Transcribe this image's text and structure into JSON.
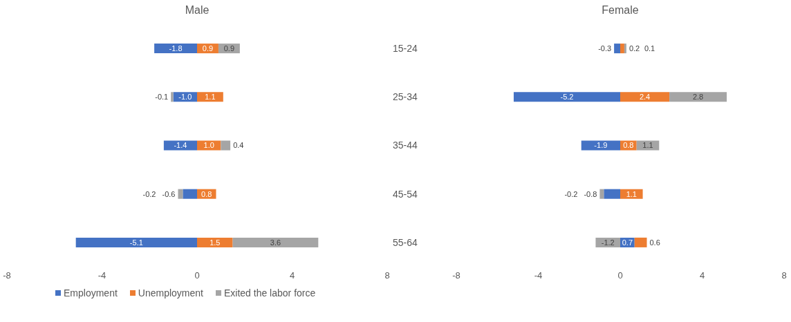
{
  "chart_data": [
    {
      "type": "bar",
      "title": "Male",
      "orientation": "horizontal",
      "stacked": true,
      "categories": [
        "15-24",
        "25-34",
        "35-44",
        "45-54",
        "55-64"
      ],
      "series": [
        {
          "name": "Employment",
          "color": "#4472c4",
          "values": [
            -1.8,
            -1.0,
            -1.4,
            -0.6,
            -5.1
          ],
          "value_labels": [
            "-1.8",
            "-1.0",
            "-1.4",
            "-0.6",
            "-5.1"
          ]
        },
        {
          "name": "Unemployment",
          "color": "#ed7d31",
          "values": [
            0.9,
            1.1,
            1.0,
            0.8,
            1.5
          ],
          "value_labels": [
            "0.9",
            "1.1",
            "1.0",
            "0.8",
            "1.5"
          ]
        },
        {
          "name": "Exited the labor force",
          "color": "#a5a5a5",
          "values": [
            0.9,
            -0.1,
            0.4,
            -0.2,
            3.6
          ],
          "value_labels": [
            "0.9",
            "-0.1",
            "0.4",
            "-0.2",
            "3.6"
          ]
        }
      ],
      "xlim": [
        -8,
        8
      ],
      "xticks": [
        -8,
        -4,
        0,
        4,
        8
      ],
      "legend": "bottom",
      "grid": false
    },
    {
      "type": "bar",
      "title": "Female",
      "orientation": "horizontal",
      "stacked": true,
      "categories": [
        null,
        null,
        null,
        null,
        null
      ],
      "series": [
        {
          "color": "#4472c4",
          "values": [
            -0.3,
            -5.2,
            -1.9,
            -0.8,
            0.7
          ],
          "value_labels": [
            "-0.3",
            "-5.2",
            "-1.9",
            "-0.8",
            "0.7"
          ]
        },
        {
          "color": "#ed7d31",
          "values": [
            0.2,
            2.4,
            0.8,
            1.1,
            0.6
          ],
          "value_labels": [
            "0.2",
            "2.4",
            "0.8",
            "1.1",
            "0.6"
          ]
        },
        {
          "color": "#a5a5a5",
          "values": [
            0.1,
            2.8,
            1.1,
            -0.2,
            -1.2
          ],
          "value_labels": [
            "0.1",
            "2.8",
            "1.1",
            "-0.2",
            "-1.2"
          ]
        }
      ],
      "xlim": [
        -8,
        8
      ],
      "xticks": [
        -8,
        -4,
        0,
        4,
        8
      ],
      "legend": false,
      "tick_labels": "x",
      "grid": false
    }
  ]
}
